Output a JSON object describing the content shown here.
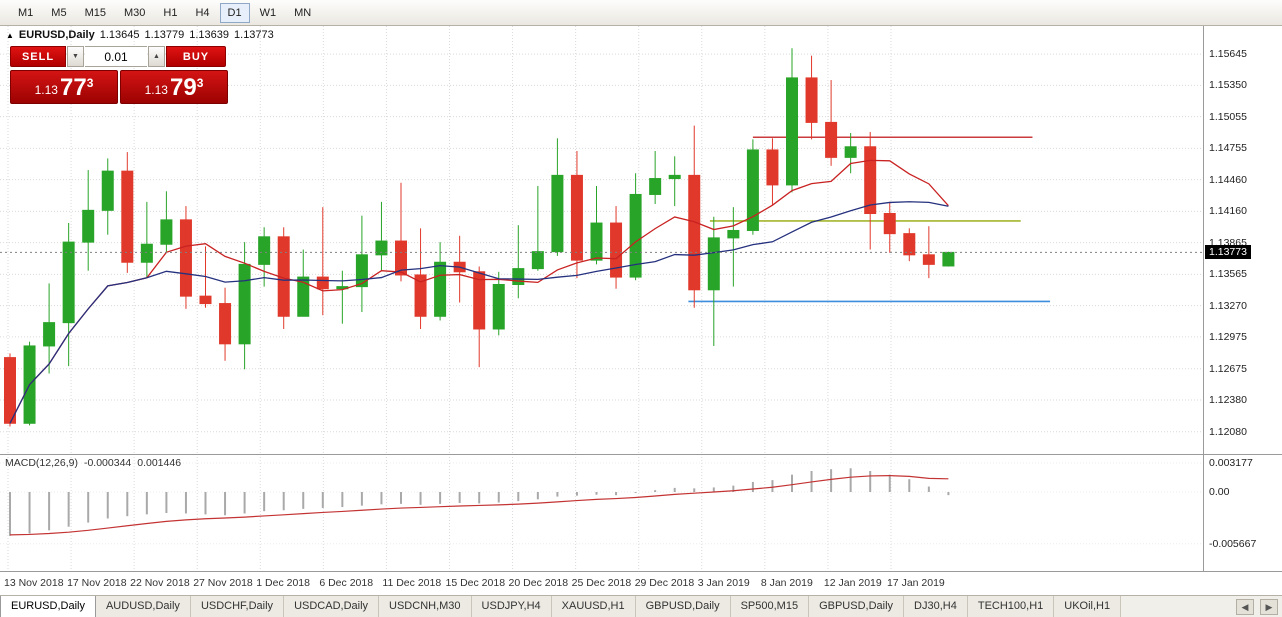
{
  "toolbar": {
    "timeframes": [
      "M1",
      "M5",
      "M15",
      "M30",
      "H1",
      "H4",
      "D1",
      "W1",
      "MN"
    ],
    "active_timeframe": "D1"
  },
  "symbol_header": {
    "collapse_icon": "▲",
    "symbol": "EURUSD,Daily",
    "open": "1.13645",
    "high": "1.13779",
    "low": "1.13639",
    "close": "1.13773"
  },
  "trade_panel": {
    "sell_label": "SELL",
    "buy_label": "BUY",
    "volume": "0.01",
    "volume_down_icon": "▼",
    "volume_up_icon": "▲",
    "bid": {
      "prefix": "1.13",
      "big": "77",
      "sup": "3"
    },
    "ask": {
      "prefix": "1.13",
      "big": "79",
      "sup": "3"
    }
  },
  "macd_panel": {
    "label": "MACD(12,26,9)",
    "main_value": "-0.000344",
    "signal_value": "0.001446"
  },
  "tabs": {
    "items": [
      "EURUSD,Daily",
      "AUDUSD,Daily",
      "USDCHF,Daily",
      "USDCAD,Daily",
      "USDCNH,M30",
      "USDJPY,H4",
      "XAUUSD,H1",
      "GBPUSD,Daily",
      "SP500,M15",
      "GBPUSD,Daily",
      "DJ30,H4",
      "TECH100,H1",
      "UKOil,H1"
    ],
    "active": "EURUSD,Daily",
    "scroll_left_icon": "◀",
    "scroll_right_icon": "▶"
  },
  "chart_data": {
    "type": "candlestick",
    "title": "EURUSD,Daily",
    "ylim": [
      1.1187,
      1.1591
    ],
    "current_price": 1.13773,
    "current_price_label": "1.13773",
    "price_axis_labels": [
      "1.15645",
      "1.15350",
      "1.15055",
      "1.14755",
      "1.14460",
      "1.14160",
      "1.13865",
      "1.13565",
      "1.13270",
      "1.12975",
      "1.12675",
      "1.12380",
      "1.12080"
    ],
    "date_axis_labels": [
      "13 Nov 2018",
      "17 Nov 2018",
      "22 Nov 2018",
      "27 Nov 2018",
      "1 Dec 2018",
      "6 Dec 2018",
      "11 Dec 2018",
      "15 Dec 2018",
      "20 Dec 2018",
      "25 Dec 2018",
      "29 Dec 2018",
      "3 Jan 2019",
      "8 Jan 2019",
      "12 Jan 2019",
      "17 Jan 2019"
    ],
    "ohlc": [
      [
        1.1278,
        1.1282,
        1.1213,
        1.1216
      ],
      [
        1.1216,
        1.1293,
        1.1214,
        1.1289
      ],
      [
        1.1289,
        1.1348,
        1.1263,
        1.1311
      ],
      [
        1.1311,
        1.1405,
        1.127,
        1.1387
      ],
      [
        1.1387,
        1.1455,
        1.136,
        1.1417
      ],
      [
        1.1417,
        1.1466,
        1.1394,
        1.1454
      ],
      [
        1.1454,
        1.1472,
        1.1358,
        1.1368
      ],
      [
        1.1368,
        1.1425,
        1.1354,
        1.1385
      ],
      [
        1.1385,
        1.1435,
        1.1378,
        1.1408
      ],
      [
        1.1408,
        1.1421,
        1.1324,
        1.1336
      ],
      [
        1.1336,
        1.1383,
        1.1325,
        1.1329
      ],
      [
        1.1329,
        1.1344,
        1.1275,
        1.1291
      ],
      [
        1.1291,
        1.1387,
        1.1267,
        1.1366
      ],
      [
        1.1366,
        1.1401,
        1.1345,
        1.1392
      ],
      [
        1.1392,
        1.1401,
        1.1305,
        1.1317
      ],
      [
        1.1317,
        1.138,
        1.1317,
        1.1354
      ],
      [
        1.1354,
        1.142,
        1.1318,
        1.1343
      ],
      [
        1.1343,
        1.136,
        1.131,
        1.1345
      ],
      [
        1.1345,
        1.1412,
        1.1321,
        1.1375
      ],
      [
        1.1375,
        1.1425,
        1.136,
        1.1388
      ],
      [
        1.1388,
        1.1443,
        1.135,
        1.1356
      ],
      [
        1.1356,
        1.14,
        1.1305,
        1.1317
      ],
      [
        1.1317,
        1.1387,
        1.1313,
        1.1368
      ],
      [
        1.1368,
        1.1393,
        1.133,
        1.1359
      ],
      [
        1.1359,
        1.1364,
        1.1269,
        1.1305
      ],
      [
        1.1305,
        1.1359,
        1.1299,
        1.1347
      ],
      [
        1.1347,
        1.1403,
        1.1334,
        1.1362
      ],
      [
        1.1362,
        1.144,
        1.136,
        1.1378
      ],
      [
        1.1378,
        1.1485,
        1.1374,
        1.145
      ],
      [
        1.145,
        1.1473,
        1.1353,
        1.137
      ],
      [
        1.137,
        1.144,
        1.1366,
        1.1405
      ],
      [
        1.1405,
        1.1421,
        1.1343,
        1.1354
      ],
      [
        1.1354,
        1.1452,
        1.1351,
        1.1432
      ],
      [
        1.1432,
        1.1473,
        1.1423,
        1.1447
      ],
      [
        1.1447,
        1.1468,
        1.1421,
        1.145
      ],
      [
        1.145,
        1.1497,
        1.1325,
        1.1342
      ],
      [
        1.1342,
        1.1411,
        1.1289,
        1.1391
      ],
      [
        1.1391,
        1.142,
        1.1345,
        1.1398
      ],
      [
        1.1398,
        1.1484,
        1.1394,
        1.1474
      ],
      [
        1.1474,
        1.1485,
        1.1422,
        1.1441
      ],
      [
        1.1441,
        1.157,
        1.1434,
        1.1542
      ],
      [
        1.1542,
        1.1563,
        1.1484,
        1.15
      ],
      [
        1.15,
        1.154,
        1.1459,
        1.1467
      ],
      [
        1.1467,
        1.149,
        1.1452,
        1.1477
      ],
      [
        1.1477,
        1.1491,
        1.138,
        1.1414
      ],
      [
        1.1414,
        1.1425,
        1.1377,
        1.1395
      ],
      [
        1.1395,
        1.14,
        1.1369,
        1.1375
      ],
      [
        1.1375,
        1.1402,
        1.1353,
        1.1366
      ],
      [
        1.13645,
        1.13779,
        1.13639,
        1.13773
      ]
    ],
    "moving_averages": [
      {
        "period": 8,
        "color": "#c92222"
      },
      {
        "period": 20,
        "color": "#25317e"
      }
    ],
    "trend_lines": [
      {
        "price": 1.1486,
        "from": 38.0,
        "to": 52.3,
        "color": "#cc3b3b"
      },
      {
        "price": 1.1407,
        "from": 35.8,
        "to": 51.7,
        "color": "#a4b62e"
      },
      {
        "price": 1.1331,
        "from": 34.7,
        "to": 53.2,
        "color": "#3e8ede"
      }
    ],
    "macd": {
      "params": "12,26,9",
      "main": -0.000344,
      "signal_last": 0.001446,
      "axis_labels": [
        "0.003177",
        "0.00",
        "-0.005667"
      ],
      "histogram": [
        -0.0048,
        -0.00455,
        -0.0042,
        -0.0038,
        -0.00335,
        -0.0029,
        -0.00265,
        -0.00245,
        -0.0023,
        -0.00235,
        -0.00245,
        -0.00255,
        -0.00235,
        -0.0021,
        -0.002,
        -0.00185,
        -0.00175,
        -0.00165,
        -0.0015,
        -0.00135,
        -0.0013,
        -0.0014,
        -0.0013,
        -0.0012,
        -0.00125,
        -0.00115,
        -0.001,
        -0.0008,
        -0.0005,
        -0.0004,
        -0.0003,
        -0.00035,
        -0.0001,
        0.0002,
        0.00045,
        0.0004,
        0.0005,
        0.0007,
        0.0011,
        0.0013,
        0.0019,
        0.0023,
        0.0025,
        0.0026,
        0.0023,
        0.0019,
        0.0014,
        0.0006,
        -0.000344
      ],
      "signal": [
        -0.0047,
        -0.00465,
        -0.00455,
        -0.0044,
        -0.0042,
        -0.00395,
        -0.0037,
        -0.00345,
        -0.00322,
        -0.00305,
        -0.00293,
        -0.00285,
        -0.00275,
        -0.00262,
        -0.0025,
        -0.00237,
        -0.00224,
        -0.00213,
        -0.002,
        -0.00187,
        -0.00176,
        -0.00169,
        -0.00161,
        -0.00153,
        -0.00147,
        -0.00141,
        -0.00133,
        -0.00122,
        -0.00108,
        -0.00094,
        -0.00081,
        -0.00072,
        -0.0006,
        -0.00044,
        -0.00026,
        -0.00013,
        0.0,
        0.00014,
        0.00033,
        0.00052,
        0.0008,
        0.0011,
        0.00138,
        0.00162,
        0.00176,
        0.00179,
        0.00171,
        0.00149,
        0.001446
      ]
    },
    "colors": {
      "bull": "#28a428",
      "bear": "#e0392b",
      "grid": "#dadada",
      "macd_hist": "#a9a9a9",
      "macd_signal": "#c43333",
      "current_price_line": "#808080"
    }
  }
}
